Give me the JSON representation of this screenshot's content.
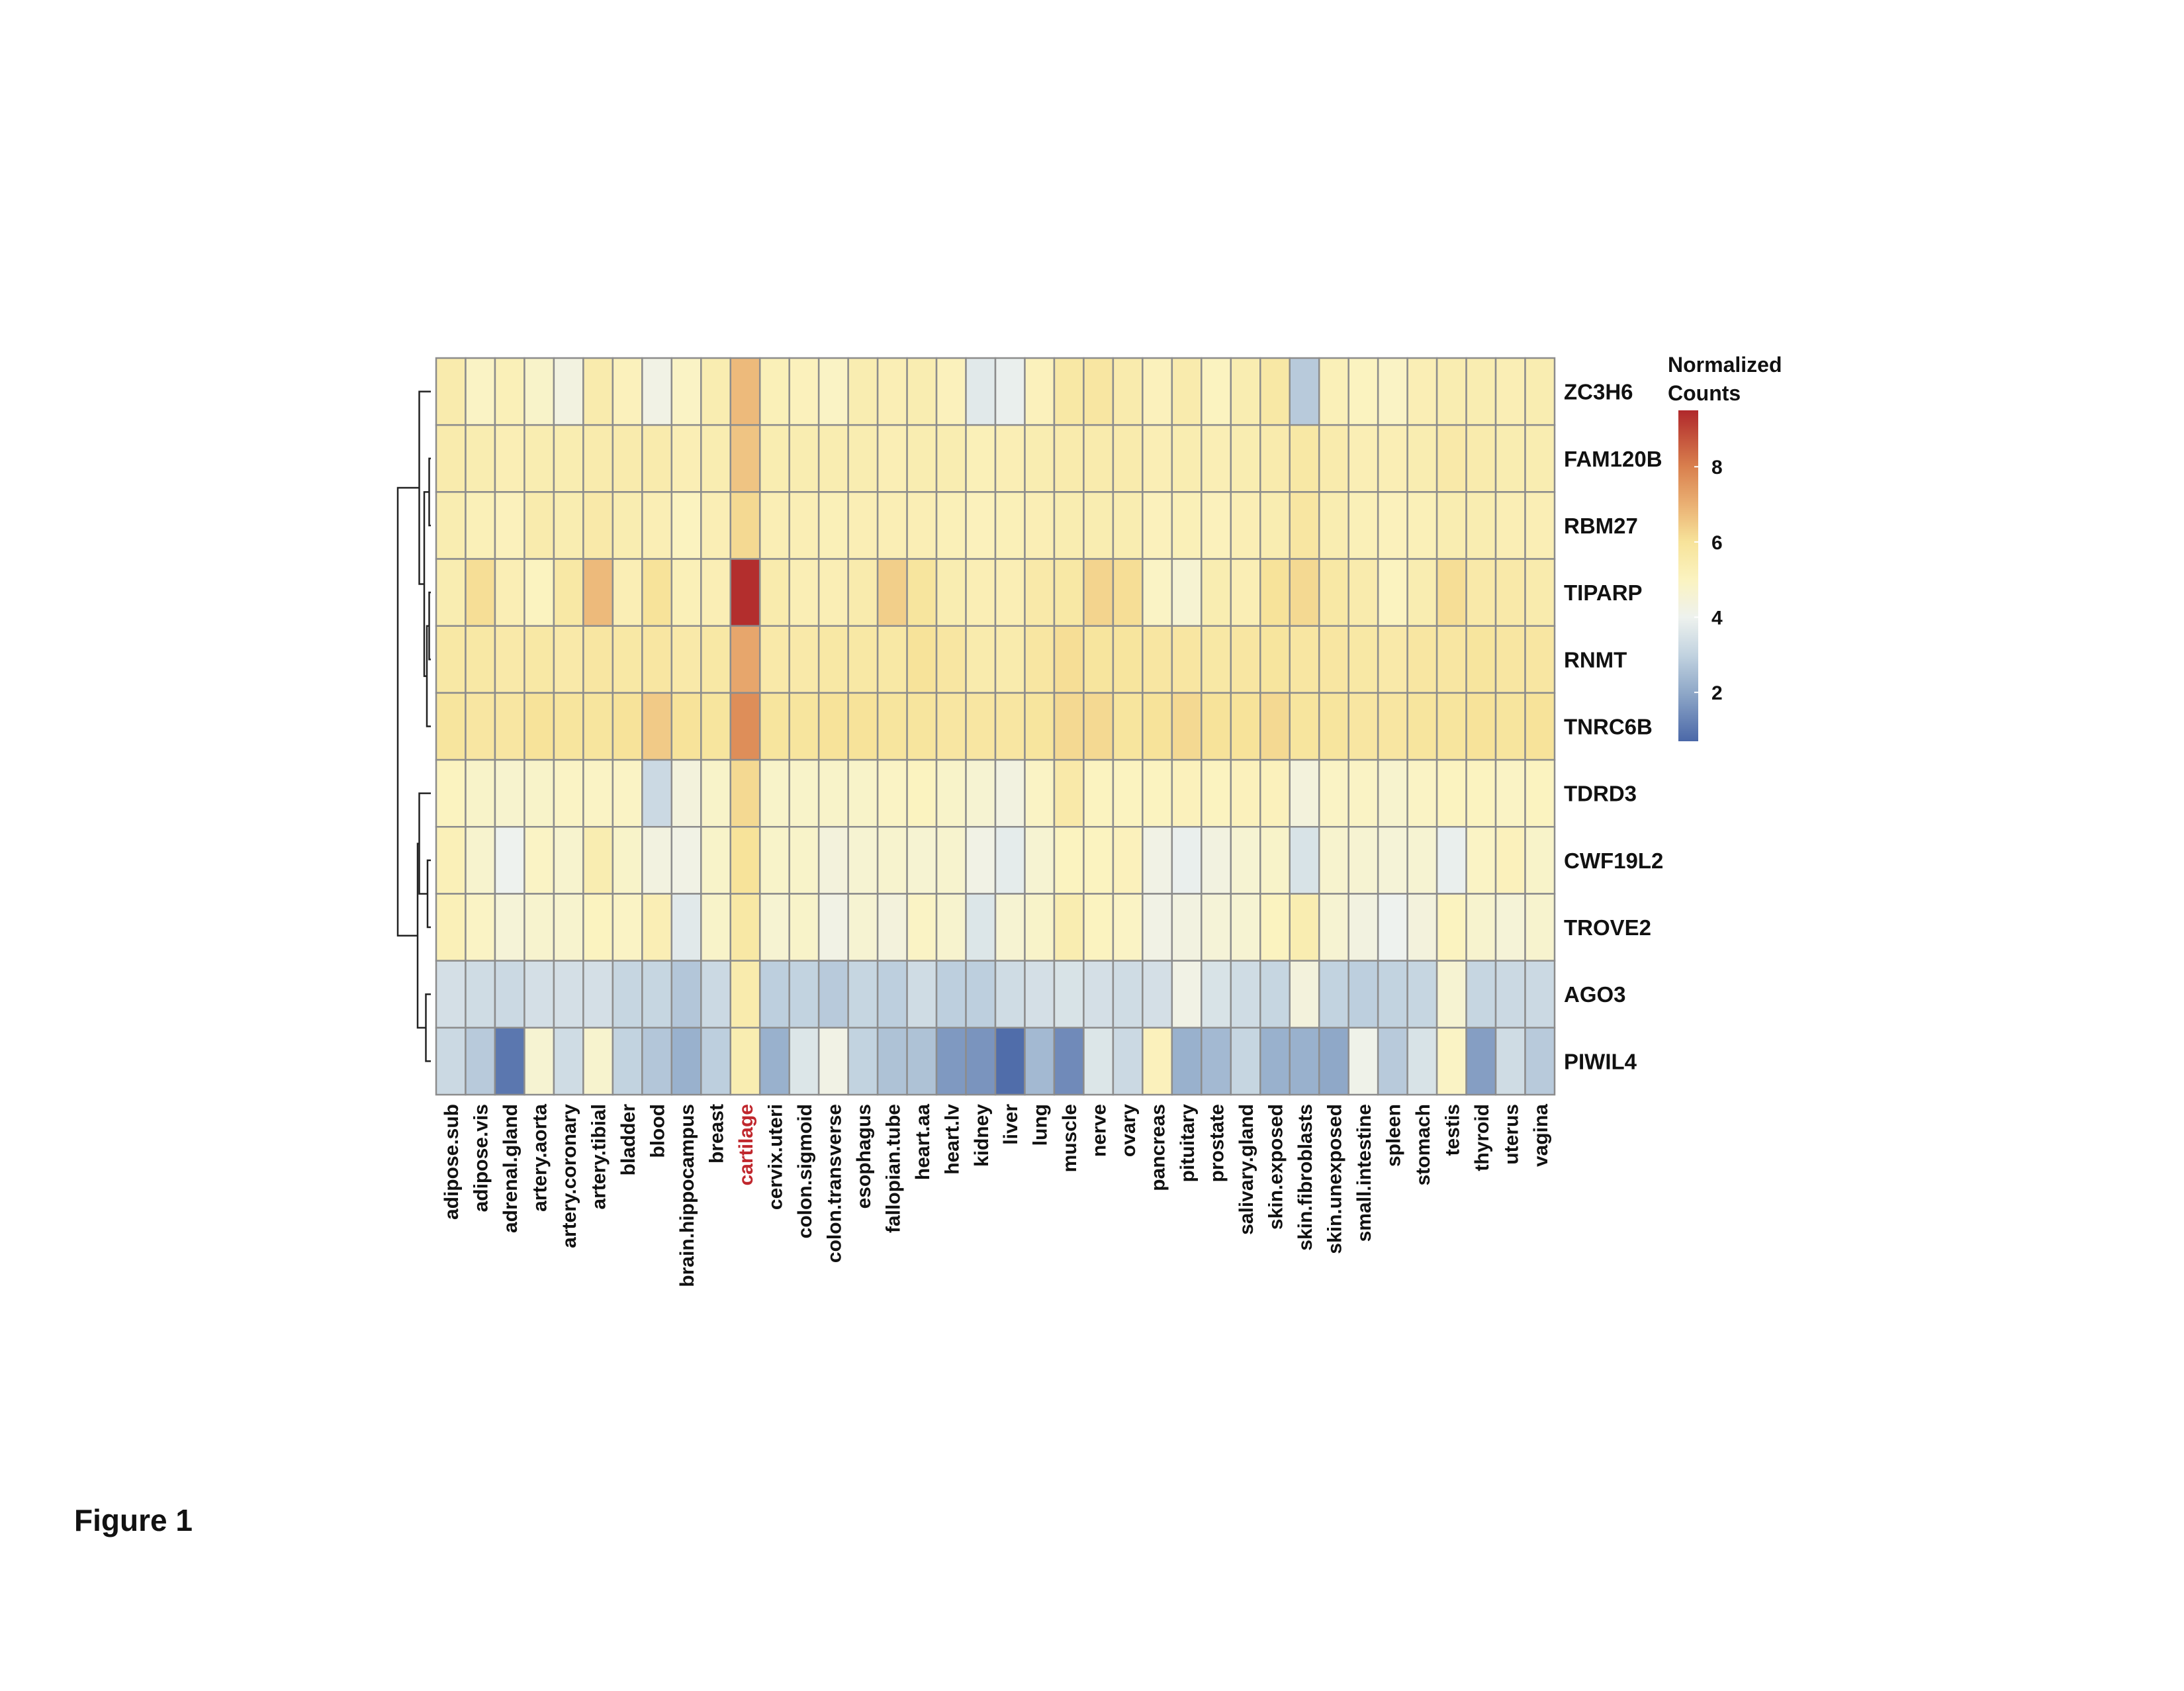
{
  "figure_label": "Figure 1",
  "chart_data": {
    "type": "heatmap",
    "title": "",
    "legend_title": [
      "Normalized",
      "Counts"
    ],
    "color_scale": {
      "min": 0.7,
      "max": 9.5,
      "stops": [
        {
          "value": 0.7,
          "color": "#4B68A8"
        },
        {
          "value": 2.0,
          "color": "#8FA8C8"
        },
        {
          "value": 3.0,
          "color": "#C2D3E0"
        },
        {
          "value": 4.0,
          "color": "#EEF2EE"
        },
        {
          "value": 5.0,
          "color": "#FBF3C0"
        },
        {
          "value": 6.0,
          "color": "#F7E39A"
        },
        {
          "value": 7.0,
          "color": "#EAB073"
        },
        {
          "value": 8.0,
          "color": "#D9804E"
        },
        {
          "value": 9.5,
          "color": "#B0282B"
        }
      ],
      "ticks": [
        2,
        4,
        6,
        8
      ]
    },
    "highlight_color": "#C0272D",
    "highlight_column": "cartilage",
    "grid_color": "#8c8c8c",
    "rows": [
      "ZC3H6",
      "FAM120B",
      "RBM27",
      "TIPARP",
      "RNMT",
      "TNRC6B",
      "TDRD3",
      "CWF19L2",
      "TROVE2",
      "AGO3",
      "PIWIL4"
    ],
    "columns": [
      "adipose.sub",
      "adipose.vis",
      "adrenal.gland",
      "artery.aorta",
      "artery.coronary",
      "artery.tibial",
      "bladder",
      "blood",
      "brain.hippocampus",
      "breast",
      "cartilage",
      "cervix.uteri",
      "colon.sigmoid",
      "colon.transverse",
      "esophagus",
      "fallopian.tube",
      "heart.aa",
      "heart.lv",
      "kidney",
      "liver",
      "lung",
      "muscle",
      "nerve",
      "ovary",
      "pancreas",
      "pituitary",
      "prostate",
      "salivary.gland",
      "skin.exposed",
      "skin.fibroblasts",
      "skin.unexposed",
      "small.intestine",
      "spleen",
      "stomach",
      "testis",
      "thyroid",
      "uterus",
      "vagina"
    ],
    "values": [
      [
        5.5,
        4.9,
        5.2,
        4.8,
        4.3,
        5.5,
        5.1,
        4.2,
        4.9,
        5.4,
        6.8,
        5.2,
        5.1,
        4.9,
        5.4,
        5.3,
        5.4,
        5.1,
        3.7,
        3.9,
        5.1,
        5.7,
        5.8,
        5.5,
        5.1,
        5.5,
        5.0,
        5.4,
        5.7,
        2.8,
        5.2,
        5.0,
        4.9,
        5.3,
        5.4,
        5.4,
        5.3,
        5.4
      ],
      [
        5.5,
        5.4,
        5.3,
        5.4,
        5.4,
        5.5,
        5.5,
        5.5,
        5.3,
        5.4,
        6.6,
        5.4,
        5.4,
        5.4,
        5.4,
        5.3,
        5.4,
        5.4,
        5.2,
        5.3,
        5.4,
        5.5,
        5.5,
        5.5,
        5.3,
        5.4,
        5.3,
        5.4,
        5.5,
        5.7,
        5.5,
        5.3,
        5.3,
        5.4,
        5.6,
        5.5,
        5.4,
        5.4
      ],
      [
        5.4,
        5.2,
        5.1,
        5.5,
        5.4,
        5.6,
        5.4,
        5.3,
        5.0,
        5.3,
        6.2,
        5.3,
        5.3,
        5.2,
        5.3,
        5.3,
        5.3,
        5.2,
        5.1,
        5.2,
        5.3,
        5.4,
        5.4,
        5.4,
        5.1,
        5.2,
        5.1,
        5.3,
        5.4,
        5.8,
        5.4,
        5.2,
        5.1,
        5.2,
        5.4,
        5.4,
        5.3,
        5.3
      ],
      [
        5.4,
        6.1,
        5.3,
        5.0,
        5.7,
        6.8,
        5.3,
        6.0,
        5.2,
        5.3,
        9.4,
        5.5,
        5.3,
        5.3,
        5.5,
        6.4,
        5.9,
        5.4,
        5.3,
        5.3,
        5.6,
        5.7,
        6.3,
        6.1,
        4.9,
        4.6,
        5.4,
        5.3,
        6.0,
        6.2,
        5.7,
        5.5,
        5.0,
        5.4,
        6.1,
        5.6,
        5.6,
        5.5
      ],
      [
        5.7,
        5.7,
        5.6,
        5.7,
        5.6,
        5.8,
        5.7,
        5.8,
        5.6,
        5.7,
        7.2,
        5.6,
        5.6,
        5.7,
        5.7,
        5.7,
        6.0,
        5.8,
        5.5,
        5.5,
        5.8,
        6.1,
        5.9,
        5.9,
        5.8,
        5.8,
        5.7,
        5.8,
        5.9,
        5.8,
        5.8,
        5.7,
        5.6,
        5.8,
        5.8,
        5.9,
        5.8,
        5.8
      ],
      [
        5.9,
        5.8,
        5.8,
        6.0,
        5.9,
        5.9,
        6.0,
        6.5,
        6.0,
        5.9,
        7.7,
        5.9,
        5.9,
        6.0,
        6.0,
        5.9,
        5.9,
        5.8,
        5.8,
        5.8,
        5.9,
        6.2,
        6.2,
        5.9,
        6.0,
        6.2,
        6.0,
        6.0,
        6.2,
        5.9,
        5.9,
        5.8,
        5.8,
        5.9,
        5.9,
        6.0,
        5.9,
        6.0
      ],
      [
        5.0,
        4.8,
        4.7,
        4.8,
        4.9,
        4.9,
        4.9,
        3.2,
        4.4,
        4.8,
        6.2,
        4.8,
        4.8,
        4.8,
        4.8,
        4.9,
        5.0,
        4.8,
        4.6,
        4.3,
        4.9,
        5.6,
        5.0,
        5.0,
        5.0,
        5.1,
        5.0,
        5.1,
        5.1,
        4.4,
        4.9,
        4.9,
        4.7,
        4.9,
        5.0,
        5.0,
        4.9,
        5.0
      ],
      [
        5.2,
        4.7,
        4.0,
        4.9,
        4.7,
        5.4,
        4.8,
        4.3,
        4.2,
        4.8,
        6.0,
        4.8,
        4.8,
        4.4,
        4.6,
        4.7,
        4.6,
        4.7,
        4.2,
        3.8,
        4.6,
        5.0,
        5.0,
        5.1,
        4.2,
        3.9,
        4.3,
        4.6,
        4.8,
        3.5,
        4.7,
        4.6,
        4.5,
        4.6,
        3.9,
        4.9,
        5.1,
        4.8
      ],
      [
        5.2,
        4.9,
        4.5,
        4.7,
        4.7,
        5.0,
        4.9,
        5.3,
        3.7,
        4.8,
        5.7,
        4.6,
        4.8,
        4.2,
        4.6,
        4.4,
        4.9,
        4.7,
        3.6,
        4.6,
        4.8,
        5.4,
        5.0,
        4.9,
        4.2,
        4.3,
        4.5,
        4.6,
        5.0,
        5.4,
        4.6,
        4.3,
        4.0,
        4.4,
        5.0,
        4.7,
        4.5,
        4.7
      ],
      [
        3.4,
        3.3,
        3.2,
        3.4,
        3.4,
        3.4,
        3.1,
        3.1,
        2.7,
        3.2,
        5.5,
        2.9,
        3.0,
        2.8,
        3.1,
        2.9,
        3.3,
        2.9,
        2.9,
        3.3,
        3.4,
        3.5,
        3.4,
        3.3,
        3.4,
        4.2,
        3.5,
        3.3,
        3.1,
        4.4,
        3.0,
        2.9,
        3.0,
        3.1,
        4.6,
        3.1,
        3.2,
        3.2
      ],
      [
        3.2,
        2.8,
        1.0,
        4.6,
        3.3,
        4.7,
        3.0,
        2.7,
        2.2,
        2.9,
        5.4,
        2.2,
        3.6,
        4.2,
        3.0,
        2.6,
        2.6,
        1.7,
        1.6,
        0.8,
        2.4,
        1.4,
        3.6,
        3.2,
        5.1,
        2.2,
        2.4,
        3.1,
        2.2,
        2.2,
        2.0,
        4.1,
        2.8,
        3.5,
        4.9,
        1.8,
        3.3,
        2.8
      ]
    ],
    "row_dendrogram": [
      {
        "a": "TIPARP",
        "b": "RNMT",
        "height": 0.05
      },
      {
        "a": "FAM120B",
        "b": "RBM27",
        "height": 0.05
      },
      {
        "a": "FAM120B+RBM27",
        "b": "TIPARP+RNMT+TNRC6B",
        "height": 0.2
      },
      {
        "a": "ZC3H6",
        "b": "FAM120B+RBM27+TIPARP+RNMT+TNRC6B",
        "height": 0.35
      },
      {
        "a": "CWF19L2",
        "b": "TROVE2",
        "height": 0.1
      },
      {
        "a": "TDRD3",
        "b": "CWF19L2+TROVE2",
        "height": 0.35
      },
      {
        "a": "AGO3",
        "b": "PIWIL4",
        "height": 0.15
      },
      {
        "a": "TDRD3+CWF19L2+TROVE2",
        "b": "AGO3+PIWIL4",
        "height": 0.4
      },
      {
        "a": "upper",
        "b": "lower",
        "height": 1.0
      }
    ]
  }
}
